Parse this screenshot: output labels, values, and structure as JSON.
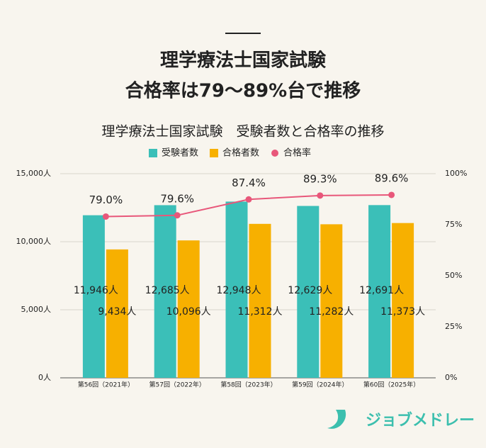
{
  "header": {
    "title": [
      "理学療法士国家試験",
      "合格率は79～89%台で推移"
    ]
  },
  "brand": "ジョブメドレー",
  "chart_data": {
    "type": "bar",
    "title": "理学療法士国家試験　受験者数と合格率の推移",
    "categories": [
      "第56回（2021年）",
      "第57回（2022年）",
      "第58回（2023年）",
      "第59回（2024年）",
      "第60回（2025年）"
    ],
    "series": [
      {
        "name": "受験者数",
        "type": "bar",
        "color": "#3bbfb8",
        "values": [
          11946,
          12685,
          12948,
          12629,
          12691
        ],
        "value_labels": [
          "11,946人",
          "12,685人",
          "12,948人",
          "12,629人",
          "12,691人"
        ]
      },
      {
        "name": "合格者数",
        "type": "bar",
        "color": "#f7b000",
        "values": [
          9434,
          10096,
          11312,
          11282,
          11373
        ],
        "value_labels": [
          "9,434人",
          "10,096人",
          "11,312人",
          "11,282人",
          "11,373人"
        ]
      },
      {
        "name": "合格率",
        "type": "line",
        "axis": "y2",
        "color": "#e8577a",
        "values": [
          79.0,
          79.6,
          87.4,
          89.3,
          89.6
        ],
        "value_labels": [
          "79.0%",
          "79.6%",
          "87.4%",
          "89.3%",
          "89.6%"
        ]
      }
    ],
    "ylim": [
      0,
      15000
    ],
    "yticks": [
      {
        "value": 0,
        "label": "0人"
      },
      {
        "value": 5000,
        "label": "5,000人"
      },
      {
        "value": 10000,
        "label": "10,000人"
      },
      {
        "value": 15000,
        "label": "15,000人"
      }
    ],
    "y2lim": [
      0,
      100
    ],
    "y2ticks": [
      {
        "value": 0,
        "label": "0%"
      },
      {
        "value": 25,
        "label": "25%"
      },
      {
        "value": 50,
        "label": "50%"
      },
      {
        "value": 75,
        "label": "75%"
      },
      {
        "value": 100,
        "label": "100%"
      }
    ],
    "grid": true,
    "legend": "top"
  }
}
